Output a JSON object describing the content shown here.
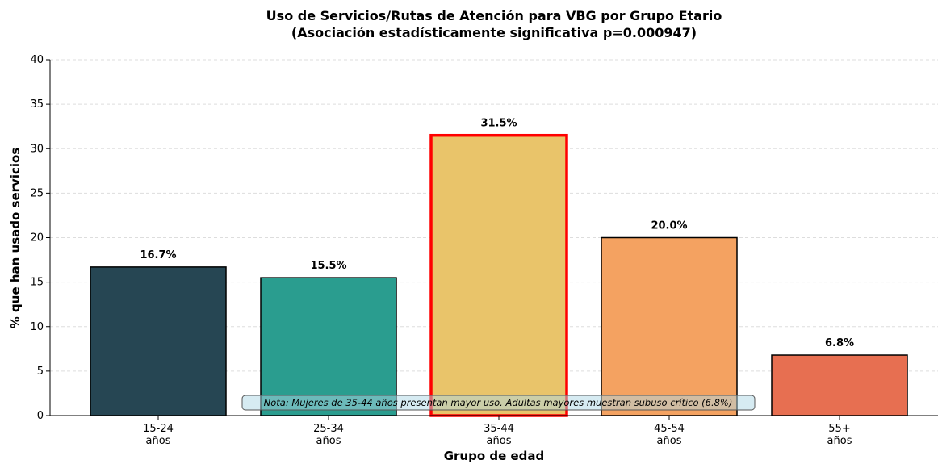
{
  "chart_data": {
    "type": "bar",
    "title": "Uso de Servicios/Rutas de Atención para VBG por Grupo Etario",
    "subtitle": "(Asociación estadísticamente significativa p=0.000947)",
    "xlabel": "Grupo de edad",
    "ylabel": "% que han usado servicios",
    "categories": [
      "15-24\naños",
      "25-34\naños",
      "35-44\naños",
      "45-54\naños",
      "55+\naños"
    ],
    "values": [
      16.7,
      15.5,
      31.5,
      20.0,
      6.8
    ],
    "value_labels": [
      "16.7%",
      "15.5%",
      "31.5%",
      "20.0%",
      "6.8%"
    ],
    "colors": [
      "#264653",
      "#2a9d8f",
      "#e9c46a",
      "#f4a261",
      "#e76f51"
    ],
    "edgecolors": [
      "#000000",
      "#000000",
      "#ff0000",
      "#000000",
      "#000000"
    ],
    "annotation": "Nota: Mujeres de 35-44 años presentan mayor uso. Adultas mayores muestran subuso crítico (6.8%)",
    "ylim": [
      0,
      40
    ],
    "yticks": [
      0,
      5,
      10,
      15,
      20,
      25,
      30,
      35,
      40
    ],
    "grid": true
  }
}
